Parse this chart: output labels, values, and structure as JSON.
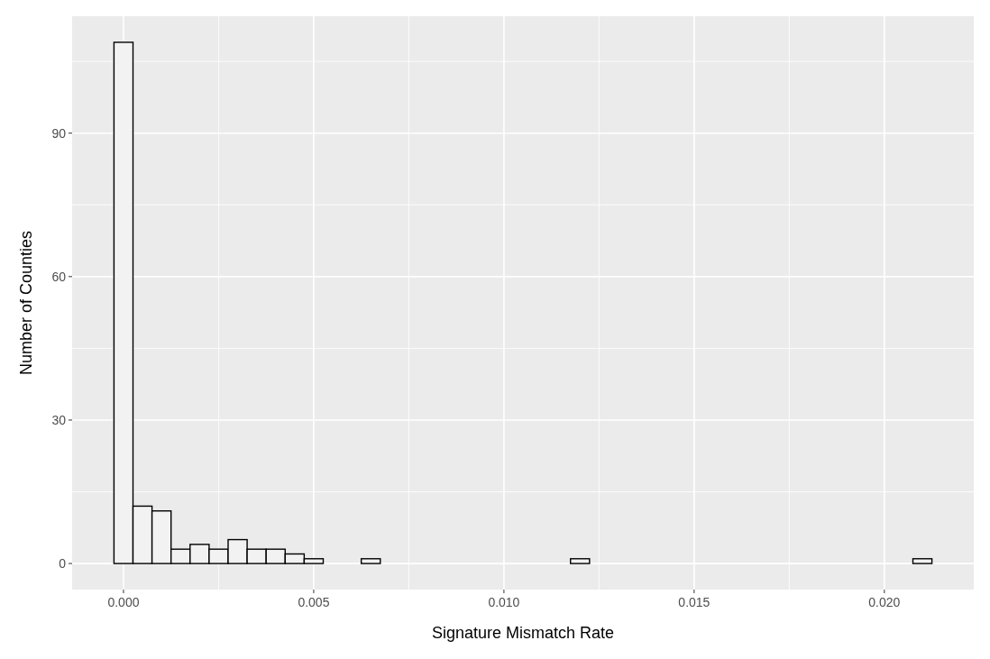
{
  "chart_data": {
    "type": "histogram",
    "xlabel": "Signature Mismatch Rate",
    "ylabel": "Number of Counties",
    "bins": [
      -0.00025,
      0.00025,
      0.00075,
      0.00125,
      0.00175,
      0.00225,
      0.00275,
      0.00325,
      0.00375,
      0.00425,
      0.00475,
      0.00525,
      0.00575,
      0.00625,
      0.00675,
      0.00725,
      0.00775,
      0.00825,
      0.00875,
      0.00925,
      0.00975,
      0.01025,
      0.01075,
      0.01125,
      0.01175,
      0.01225,
      0.01275,
      0.01325,
      0.01375,
      0.01425,
      0.01475,
      0.01525,
      0.01575,
      0.01625,
      0.01675,
      0.01725,
      0.01775,
      0.01825,
      0.01875,
      0.01925,
      0.01975,
      0.02025,
      0.02075,
      0.02125
    ],
    "values": [
      109,
      12,
      11,
      3,
      4,
      3,
      5,
      3,
      3,
      2,
      1,
      0,
      0,
      1,
      0,
      0,
      0,
      0,
      0,
      0,
      0,
      0,
      0,
      0,
      1,
      0,
      0,
      0,
      0,
      0,
      0,
      0,
      0,
      0,
      0,
      0,
      0,
      0,
      0,
      0,
      0,
      0,
      1
    ],
    "color": "#f2f2f2",
    "xlim": [
      -0.00135,
      0.02235
    ],
    "xticks": [
      {
        "value": 0,
        "label": "0.000"
      },
      {
        "value": 0.005,
        "label": "0.005"
      },
      {
        "value": 0.01,
        "label": "0.010"
      },
      {
        "value": 0.015,
        "label": "0.015"
      },
      {
        "value": 0.02,
        "label": "0.020"
      }
    ],
    "ylim": [
      -5.45,
      114.45
    ],
    "yticks": [
      0,
      30,
      60,
      90
    ],
    "grid": true
  }
}
